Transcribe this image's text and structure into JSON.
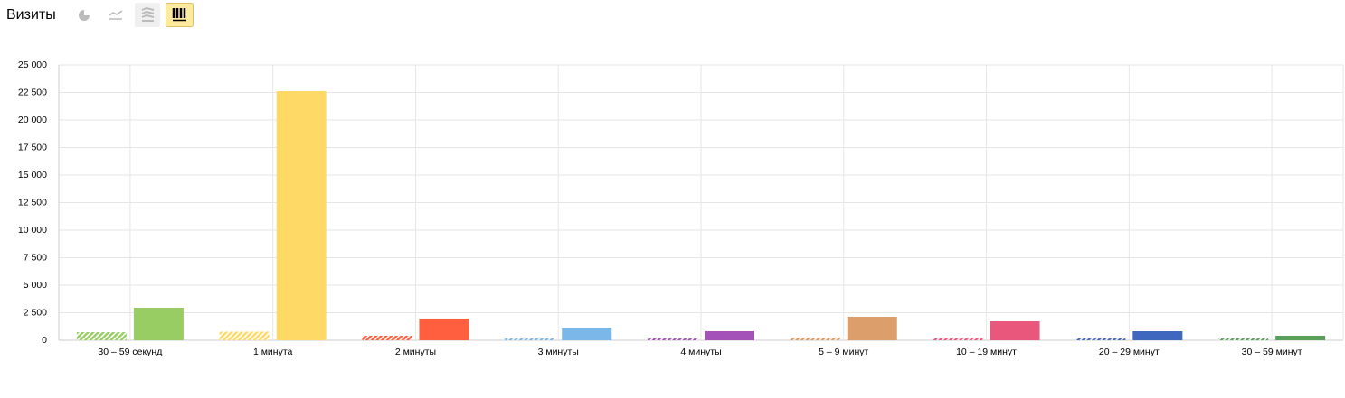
{
  "chart_data": {
    "type": "bar",
    "title": "Визиты",
    "categories": [
      "30 – 59 секунд",
      "1 минута",
      "2 минуты",
      "3 минуты",
      "4 минуты",
      "5 – 9 минут",
      "10 – 19 минут",
      "20 – 29 минут",
      "30 – 59 минут"
    ],
    "colors": [
      "#98cd63",
      "#ffd966",
      "#ff5f3f",
      "#7bb7e8",
      "#a552b8",
      "#dc9e6b",
      "#e9577c",
      "#3f67c0",
      "#5aa05a"
    ],
    "series": [
      {
        "pattern": "hatched",
        "values": [
          740,
          780,
          410,
          160,
          160,
          250,
          160,
          160,
          160
        ]
      },
      {
        "pattern": "solid",
        "values": [
          2950,
          22620,
          1970,
          1150,
          820,
          2130,
          1720,
          820,
          410
        ]
      }
    ],
    "ylim": [
      0,
      25000
    ],
    "yticks": [
      0,
      {
        "value": 2500,
        "label": "2 500"
      },
      {
        "value": 5000,
        "label": "5 000"
      },
      {
        "value": 7500,
        "label": "7 500"
      },
      {
        "value": 10000,
        "label": "10 000"
      },
      {
        "value": 12500,
        "label": "12 500"
      },
      {
        "value": 15000,
        "label": "15 000"
      },
      {
        "value": 17500,
        "label": "17 500"
      },
      {
        "value": 20000,
        "label": "20 000"
      },
      {
        "value": 22500,
        "label": "22 500"
      },
      {
        "value": 25000,
        "label": "25 000"
      }
    ],
    "grid": true
  }
}
